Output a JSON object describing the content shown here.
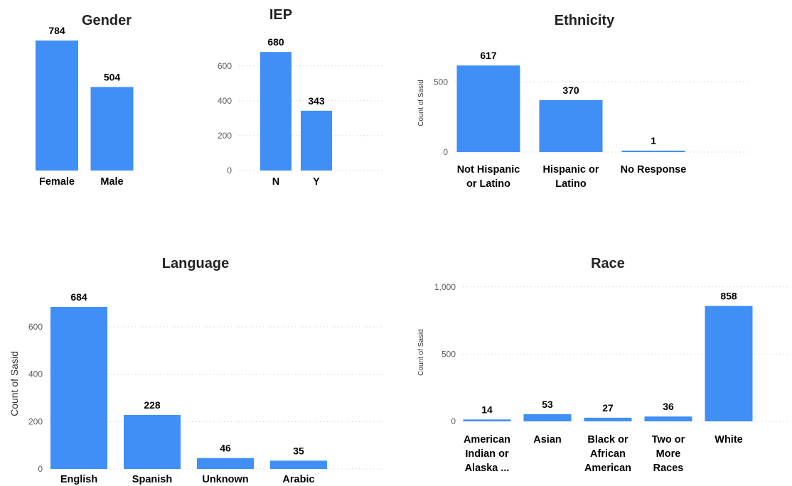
{
  "chart_data": [
    {
      "id": "gender",
      "type": "bar",
      "title": "Gender",
      "categories": [
        "Female",
        "Male"
      ],
      "values": [
        784,
        504
      ],
      "ylabel": "",
      "yticks": [],
      "grid": false
    },
    {
      "id": "iep",
      "type": "bar",
      "title": "IEP",
      "categories": [
        "N",
        "Y"
      ],
      "values": [
        680,
        343
      ],
      "ylabel": "",
      "yticks": [
        0,
        200,
        400,
        600
      ],
      "grid": true
    },
    {
      "id": "ethnicity",
      "type": "bar",
      "title": "Ethnicity",
      "categories": [
        "Not Hispanic or Latino",
        "Hispanic or Latino",
        "No Response"
      ],
      "values": [
        617,
        370,
        1
      ],
      "ylabel": "Count of Sasid",
      "yticks": [
        0,
        500
      ],
      "grid": true
    },
    {
      "id": "language",
      "type": "bar",
      "title": "Language",
      "categories": [
        "English",
        "Spanish",
        "Unknown",
        "Arabic"
      ],
      "values": [
        684,
        228,
        46,
        35
      ],
      "ylabel": "Count of Sasid",
      "yticks": [
        0,
        200,
        400,
        600
      ],
      "grid": true
    },
    {
      "id": "race",
      "type": "bar",
      "title": "Race",
      "categories": [
        "American Indian or Alaska ...",
        "Asian",
        "Black or African American",
        "Two or More Races",
        "White"
      ],
      "values": [
        14,
        53,
        27,
        36,
        858
      ],
      "ylabel": "Count of Sasid",
      "yticks": [
        0,
        500,
        1000
      ],
      "ytick_labels": [
        "0",
        "500",
        "1,000"
      ],
      "grid": true
    }
  ]
}
